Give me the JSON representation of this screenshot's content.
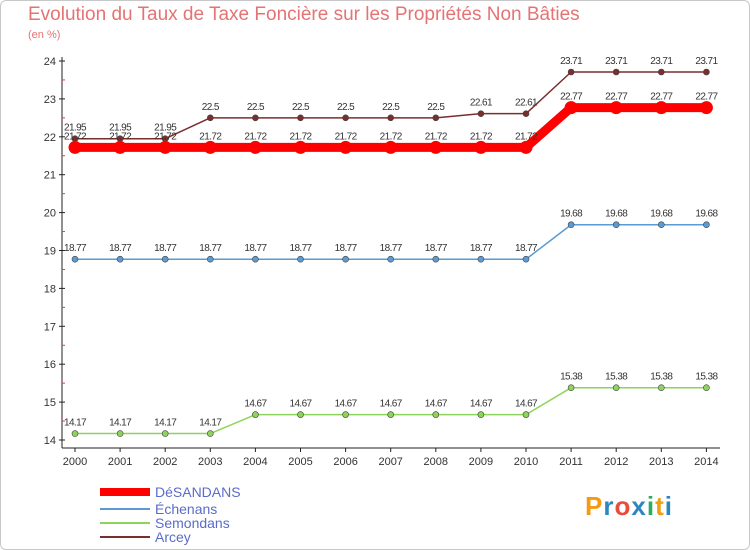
{
  "title": "Evolution du Taux de Taxe Foncière sur les Propriétés Non Bâties",
  "unit_label": "(en %)",
  "logo": {
    "text": "Proxiti",
    "colors": [
      "#f39c12",
      "#2e86c1",
      "#e74c3c",
      "#2e86c1",
      "#27ae60",
      "#f39c12",
      "#2e86c1"
    ]
  },
  "chart_data": {
    "type": "line",
    "title": "Evolution du Taux de Taxe Foncière sur les Propriétés Non Bâties",
    "ylabel": "(en %)",
    "xlabel": "",
    "x": [
      "2000",
      "2001",
      "2002",
      "2003",
      "2004",
      "2005",
      "2006",
      "2007",
      "2008",
      "2009",
      "2010",
      "2011",
      "2012",
      "2013",
      "2014"
    ],
    "ylim": [
      14,
      24
    ],
    "yticks": [
      "14",
      "15",
      "16",
      "17",
      "18",
      "19",
      "20",
      "21",
      "22",
      "23",
      "24"
    ],
    "grid": false,
    "legend_position": "bottom-left",
    "series": [
      {
        "name": "DéSANDANS",
        "color": "#ff0000",
        "thick": true,
        "values": [
          21.72,
          21.72,
          21.72,
          21.72,
          21.72,
          21.72,
          21.72,
          21.72,
          21.72,
          21.72,
          21.72,
          22.77,
          22.77,
          22.77,
          22.77
        ],
        "labels": [
          "21.72",
          "21.72",
          "21.72",
          "21.72",
          "21.72",
          "21.72",
          "21.72",
          "21.72",
          "21.72",
          "21.72",
          "21.72",
          "22.77",
          "22.77",
          "22.77",
          "22.77"
        ]
      },
      {
        "name": "Échenans",
        "color": "#5a9bd4",
        "thick": false,
        "values": [
          18.77,
          18.77,
          18.77,
          18.77,
          18.77,
          18.77,
          18.77,
          18.77,
          18.77,
          18.77,
          18.77,
          19.68,
          19.68,
          19.68,
          19.68
        ],
        "labels": [
          "18.77",
          "18.77",
          "18.77",
          "18.77",
          "18.77",
          "18.77",
          "18.77",
          "18.77",
          "18.77",
          "18.77",
          "18.77",
          "19.68",
          "19.68",
          "19.68",
          "19.68"
        ]
      },
      {
        "name": "Semondans",
        "color": "#8fd45a",
        "thick": false,
        "values": [
          14.17,
          14.17,
          14.17,
          14.17,
          14.67,
          14.67,
          14.67,
          14.67,
          14.67,
          14.67,
          14.67,
          15.38,
          15.38,
          15.38,
          15.38
        ],
        "labels": [
          "14.17",
          "14.17",
          "14.17",
          "14.17",
          "14.67",
          "14.67",
          "14.67",
          "14.67",
          "14.67",
          "14.67",
          "14.67",
          "15.38",
          "15.38",
          "15.38",
          "15.38"
        ]
      },
      {
        "name": "Arcey",
        "color": "#7a2e2e",
        "thick": false,
        "values": [
          21.95,
          21.95,
          21.95,
          22.5,
          22.5,
          22.5,
          22.5,
          22.5,
          22.5,
          22.61,
          22.61,
          23.71,
          23.71,
          23.71,
          23.71
        ],
        "labels": [
          "21.95",
          "21.95",
          "21.95",
          "22.5",
          "22.5",
          "22.5",
          "22.5",
          "22.5",
          "22.5",
          "22.61",
          "22.61",
          "23.71",
          "23.71",
          "23.71",
          "23.71"
        ]
      }
    ]
  }
}
